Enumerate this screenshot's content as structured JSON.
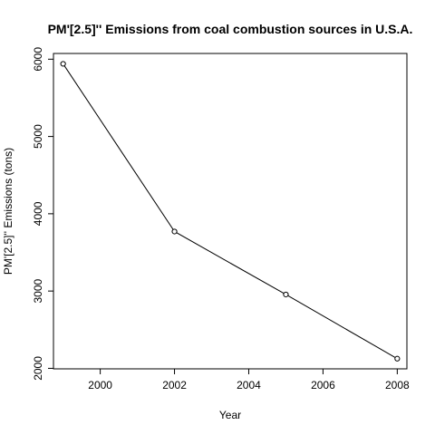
{
  "chart_data": {
    "type": "line",
    "title": "PM'[2.5]'' Emissions from coal combustion sources in U.S.A.",
    "xlabel": "Year",
    "ylabel": "PM'[2.5]'' Emissions (tons)",
    "x": [
      1999,
      2002,
      2005,
      2008
    ],
    "series": [
      {
        "name": "",
        "values": [
          5940,
          3770,
          2955,
          2125
        ]
      }
    ],
    "xlim": [
      1998.74,
      2008.26
    ],
    "ylim": [
      1993.3,
      6074.1
    ],
    "x_ticks": [
      2000,
      2002,
      2004,
      2006,
      2008
    ],
    "y_ticks": [
      2000,
      3000,
      4000,
      5000,
      6000
    ],
    "x_tick_labels": [
      "2000",
      "2002",
      "2004",
      "2006",
      "2008"
    ],
    "y_tick_labels": [
      "2000",
      "3000",
      "4000",
      "5000",
      "6000"
    ],
    "grid": false,
    "markers": "open-circle",
    "colors": {
      "line": "#000000",
      "marker": "#000000",
      "background": "#ffffff"
    }
  }
}
